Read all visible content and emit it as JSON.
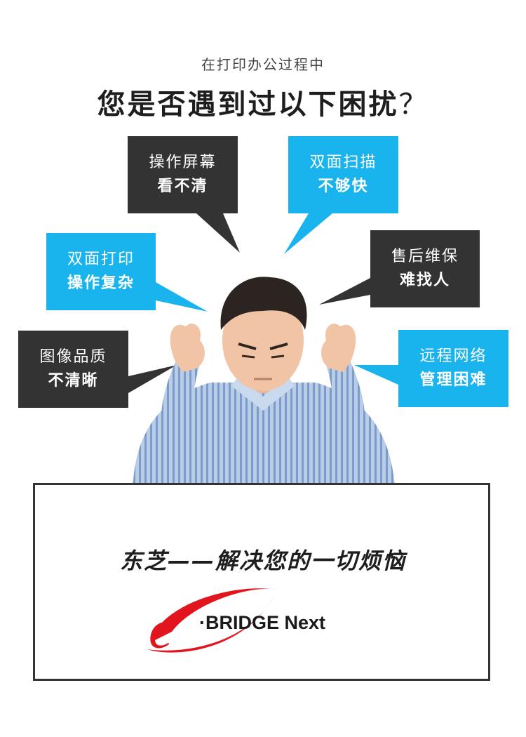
{
  "header": {
    "subtitle": "在打印办公过程中",
    "headline": "您是否遇到过以下困扰",
    "headline_mark": "？"
  },
  "bubbles": [
    {
      "line1": "操作屏幕",
      "line2": "看不清",
      "color": "#333333"
    },
    {
      "line1": "双面扫描",
      "line2": "不够快",
      "color": "#19b3ee"
    },
    {
      "line1": "双面打印",
      "line2": "操作复杂",
      "color": "#19b3ee"
    },
    {
      "line1": "售后维保",
      "line2": "难找人",
      "color": "#333333"
    },
    {
      "line1": "图像品质",
      "line2": "不清晰",
      "color": "#333333"
    },
    {
      "line1": "远程网络",
      "line2": "管理困难",
      "color": "#19b3ee"
    }
  ],
  "card": {
    "slogan": "东芝——解决您的一切烦恼",
    "logo_e": "e",
    "logo_text": "·BRIDGE Next"
  },
  "colors": {
    "accent_blue": "#19b3ee",
    "dark": "#333333",
    "logo_red": "#e2141e"
  }
}
